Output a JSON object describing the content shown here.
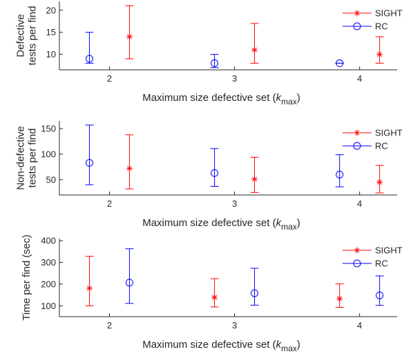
{
  "colors": {
    "sight": "#ff0000",
    "rc": "#0000ff",
    "axis": "#262626"
  },
  "chart_data": [
    {
      "type": "errorbar",
      "ylabel": [
        "Defective",
        "tests per find"
      ],
      "xlabel": "Maximum size defective set (k_max)",
      "xlabel_main": "Maximum size defective set (",
      "xlabel_k": "k",
      "xlabel_sub": "max",
      "xlabel_close": ")",
      "xlim": [
        1.6,
        4.3
      ],
      "ylim": [
        6.5,
        22
      ],
      "xticks": [
        2,
        3,
        4
      ],
      "yticks": [
        10,
        15,
        20
      ],
      "legend": {
        "position": "top-right",
        "entries": [
          "SIGHT",
          "RC"
        ]
      },
      "series": [
        {
          "name": "RC",
          "marker": "circle",
          "x": [
            1.84,
            2.84,
            3.84
          ],
          "mean": [
            9,
            8,
            8
          ],
          "low": [
            8,
            7,
            8
          ],
          "high": [
            15,
            10,
            8
          ]
        },
        {
          "name": "SIGHT",
          "marker": "star",
          "x": [
            2.16,
            3.16,
            4.16
          ],
          "mean": [
            14,
            11,
            10
          ],
          "low": [
            9,
            8,
            8
          ],
          "high": [
            21,
            17,
            14
          ]
        }
      ]
    },
    {
      "type": "errorbar",
      "ylabel": [
        "Non-defective",
        "tests per find"
      ],
      "xlabel": "Maximum size defective set (k_max)",
      "xlabel_main": "Maximum size defective set (",
      "xlabel_k": "k",
      "xlabel_sub": "max",
      "xlabel_close": ")",
      "xlim": [
        1.6,
        4.3
      ],
      "ylim": [
        20,
        165
      ],
      "xticks": [
        2,
        3,
        4
      ],
      "yticks": [
        50,
        100,
        150
      ],
      "legend": {
        "position": "top-right",
        "entries": [
          "SIGHT",
          "RC"
        ]
      },
      "series": [
        {
          "name": "RC",
          "marker": "circle",
          "x": [
            1.84,
            2.84,
            3.84
          ],
          "mean": [
            83,
            63,
            60
          ],
          "low": [
            40,
            37,
            36
          ],
          "high": [
            157,
            111,
            99
          ]
        },
        {
          "name": "SIGHT",
          "marker": "star",
          "x": [
            2.16,
            3.16,
            4.16
          ],
          "mean": [
            72,
            51,
            45
          ],
          "low": [
            32,
            25,
            24
          ],
          "high": [
            138,
            94,
            78
          ]
        }
      ]
    },
    {
      "type": "errorbar",
      "ylabel": [
        "Time per find (sec)"
      ],
      "xlabel": "Maximum size defective set (k_max)",
      "xlabel_main": "Maximum size defective set (",
      "xlabel_k": "k",
      "xlabel_sub": "max",
      "xlabel_close": ")",
      "xlim": [
        1.6,
        4.3
      ],
      "ylim": [
        50,
        410
      ],
      "xticks": [
        2,
        3,
        4
      ],
      "yticks": [
        100,
        200,
        300,
        400
      ],
      "legend": {
        "position": "top-right",
        "entries": [
          "SIGHT",
          "RC"
        ]
      },
      "series": [
        {
          "name": "SIGHT",
          "marker": "star",
          "x": [
            1.84,
            2.84,
            3.84
          ],
          "mean": [
            181,
            139,
            133
          ],
          "low": [
            100,
            95,
            93
          ],
          "high": [
            328,
            225,
            201
          ]
        },
        {
          "name": "RC",
          "marker": "circle",
          "x": [
            2.16,
            3.16,
            4.16
          ],
          "mean": [
            207,
            158,
            148
          ],
          "low": [
            111,
            103,
            102
          ],
          "high": [
            363,
            273,
            238
          ]
        }
      ]
    }
  ]
}
